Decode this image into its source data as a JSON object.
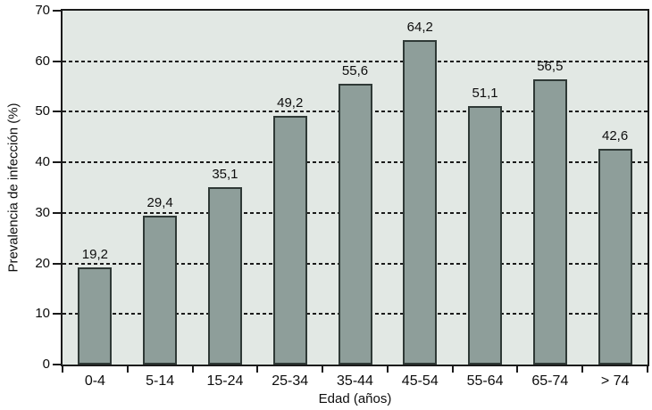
{
  "chart_data": {
    "type": "bar",
    "title": "",
    "xlabel": "Edad (años)",
    "ylabel": "Prevalencia de infección (%)",
    "categories": [
      "0-4",
      "5-14",
      "15-24",
      "25-34",
      "35-44",
      "45-54",
      "55-64",
      "65-74",
      "> 74"
    ],
    "values": [
      19.2,
      29.4,
      35.1,
      49.2,
      55.6,
      64.2,
      51.1,
      56.5,
      42.6
    ],
    "value_labels": [
      "19,2",
      "29,4",
      "35,1",
      "49,2",
      "55,6",
      "64,2",
      "51,1",
      "56,5",
      "42,6"
    ],
    "ylim": [
      0,
      70
    ],
    "yticks": [
      0,
      10,
      20,
      30,
      40,
      50,
      60,
      70
    ],
    "ytick_labels": [
      "0",
      "10",
      "20",
      "30",
      "40",
      "50",
      "60",
      "70"
    ],
    "gridlines_at": [
      10,
      20,
      30,
      40,
      50,
      60
    ],
    "grid_style": "dashed",
    "legend": "none",
    "colors": {
      "bar_fill": "#8e9e9a",
      "bar_border": "#2f3936",
      "plot_background": "#e2e8e4",
      "axis": "#1a1a1a",
      "gridline": "#1a1a1a",
      "text": "#0d0d0d",
      "page_background": "#ffffff"
    }
  }
}
